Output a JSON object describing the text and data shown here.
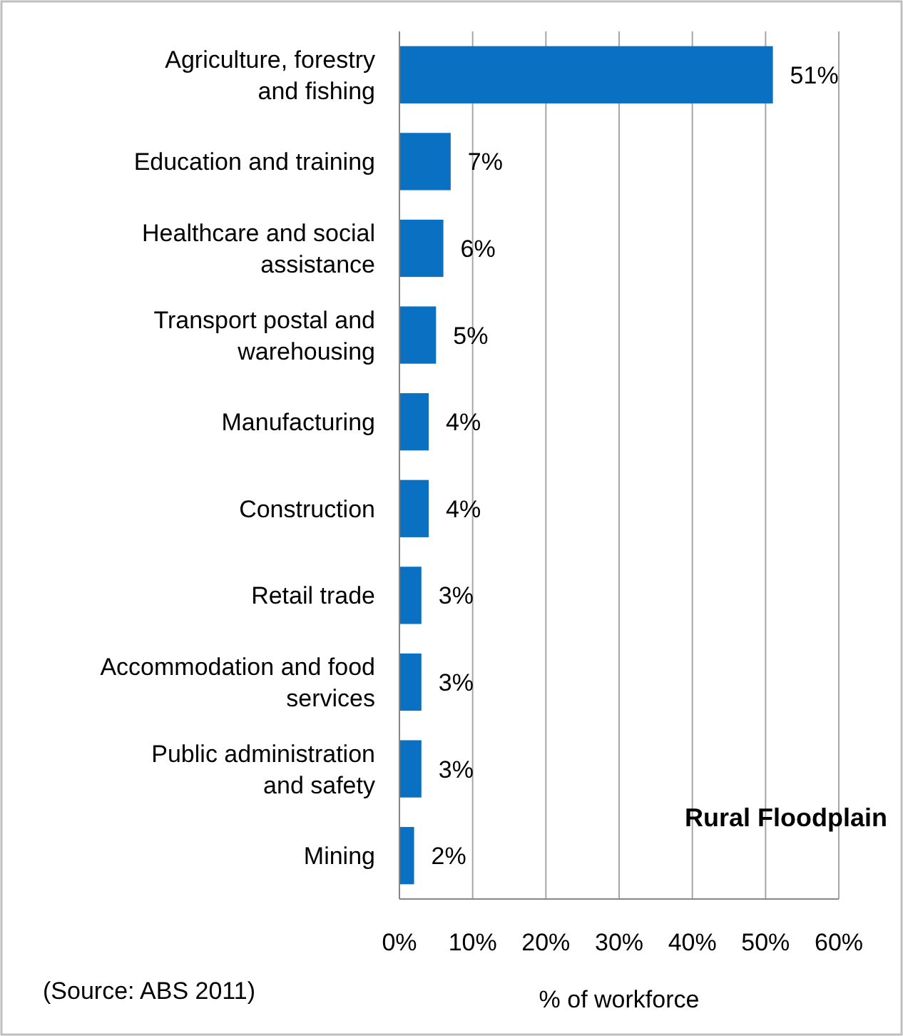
{
  "chart_data": {
    "type": "bar",
    "orientation": "horizontal",
    "categories": [
      "Agriculture, forestry and fishing",
      "Education and training",
      "Healthcare and social assistance",
      "Transport postal and warehousing",
      "Manufacturing",
      "Construction",
      "Retail trade",
      "Accommodation and food services",
      "Public administration and safety",
      "Mining"
    ],
    "values": [
      51,
      7,
      6,
      5,
      4,
      4,
      3,
      3,
      3,
      2
    ],
    "color": "#0a70c2",
    "data_labels": true,
    "value_labels": [
      "51%",
      "7%",
      "6%",
      "5%",
      "4%",
      "4%",
      "3%",
      "3%",
      "3%",
      "2%"
    ],
    "xlim": [
      0,
      60
    ],
    "xticks": [
      {
        "value": 0,
        "label": "0%"
      },
      {
        "value": 10,
        "label": "10%"
      },
      {
        "value": 20,
        "label": "20%"
      },
      {
        "value": 30,
        "label": "30%"
      },
      {
        "value": 40,
        "label": "40%"
      },
      {
        "value": 50,
        "label": "50%"
      },
      {
        "value": 60,
        "label": "60%"
      }
    ],
    "grid": "x",
    "xlabel": "% of workforce",
    "annotations": [
      "Rural Floodplain",
      "(Source: ABS 2011)"
    ]
  }
}
